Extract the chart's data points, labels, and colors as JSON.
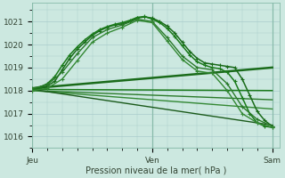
{
  "background_color": "#cce8e0",
  "grid_color": "#aacccc",
  "ylabel_ticks": [
    1016,
    1017,
    1018,
    1019,
    1020,
    1021
  ],
  "xlabel_ticks": [
    0,
    16,
    32
  ],
  "xlabel_labels": [
    "Jeu",
    "Ven",
    "Sam"
  ],
  "xlabel": "Pression niveau de la mer( hPa )",
  "xlim": [
    0,
    33
  ],
  "ylim": [
    1015.5,
    1021.8
  ],
  "curved_lines": [
    {
      "x": [
        0,
        1,
        2,
        3,
        4,
        5,
        6,
        7,
        8,
        9,
        10,
        11,
        12,
        13,
        14,
        15,
        16,
        17,
        18,
        19,
        20,
        21,
        22,
        23,
        24,
        25,
        26,
        27,
        28,
        29,
        30,
        31,
        32
      ],
      "y": [
        1018.0,
        1018.1,
        1018.2,
        1018.4,
        1018.9,
        1019.4,
        1019.8,
        1020.1,
        1020.4,
        1020.6,
        1020.75,
        1020.85,
        1020.9,
        1021.0,
        1021.15,
        1021.2,
        1021.15,
        1021.0,
        1020.8,
        1020.5,
        1020.1,
        1019.7,
        1019.4,
        1019.2,
        1019.15,
        1019.1,
        1019.05,
        1019.0,
        1018.5,
        1017.8,
        1017.1,
        1016.7,
        1016.45
      ],
      "color": "#1a6b1a",
      "lw": 1.1
    },
    {
      "x": [
        0,
        1,
        2,
        3,
        4,
        5,
        6,
        7,
        8,
        9,
        10,
        11,
        12,
        13,
        14,
        15,
        16,
        17,
        18,
        19,
        20,
        21,
        22,
        23,
        24,
        25,
        26,
        27,
        28,
        29,
        30,
        31,
        32
      ],
      "y": [
        1018.05,
        1018.15,
        1018.3,
        1018.6,
        1019.1,
        1019.55,
        1019.9,
        1020.2,
        1020.45,
        1020.65,
        1020.78,
        1020.88,
        1020.95,
        1021.05,
        1021.18,
        1021.22,
        1021.1,
        1020.95,
        1020.7,
        1020.35,
        1019.95,
        1019.55,
        1019.25,
        1019.1,
        1019.0,
        1018.95,
        1018.8,
        1018.4,
        1017.7,
        1017.0,
        1016.6,
        1016.45,
        1016.4
      ],
      "color": "#1a7a1a",
      "lw": 1.1
    },
    {
      "x": [
        0,
        2,
        4,
        6,
        8,
        10,
        12,
        14,
        16,
        18,
        20,
        22,
        24,
        26,
        28,
        30,
        32
      ],
      "y": [
        1018.1,
        1018.25,
        1018.8,
        1019.6,
        1020.3,
        1020.65,
        1020.85,
        1021.1,
        1021.0,
        1020.3,
        1019.5,
        1019.0,
        1018.9,
        1018.3,
        1017.3,
        1016.75,
        1016.45
      ],
      "color": "#2a7a2a",
      "lw": 1.0
    },
    {
      "x": [
        0,
        2,
        4,
        6,
        8,
        10,
        12,
        14,
        16,
        18,
        20,
        22,
        24,
        26,
        28,
        30,
        32
      ],
      "y": [
        1018.0,
        1018.1,
        1018.5,
        1019.3,
        1020.1,
        1020.5,
        1020.75,
        1021.05,
        1020.95,
        1020.15,
        1019.35,
        1018.85,
        1018.75,
        1018.0,
        1017.0,
        1016.6,
        1016.4
      ],
      "color": "#338833",
      "lw": 1.0
    }
  ],
  "linear_lines": [
    {
      "x": [
        0,
        32
      ],
      "y": [
        1018.1,
        1019.0
      ],
      "color": "#1a6b1a",
      "lw": 1.8
    },
    {
      "x": [
        0,
        32
      ],
      "y": [
        1018.05,
        1018.0
      ],
      "color": "#1a7a1a",
      "lw": 1.1
    },
    {
      "x": [
        0,
        32
      ],
      "y": [
        1018.0,
        1017.6
      ],
      "color": "#2a7a2a",
      "lw": 1.0
    },
    {
      "x": [
        0,
        32
      ],
      "y": [
        1018.0,
        1017.2
      ],
      "color": "#338833",
      "lw": 1.0
    },
    {
      "x": [
        0,
        32
      ],
      "y": [
        1018.05,
        1016.5
      ],
      "color": "#1a5a1a",
      "lw": 1.0
    }
  ],
  "vline_color": "#88bbaa",
  "vline_x": [
    0,
    16,
    32
  ]
}
